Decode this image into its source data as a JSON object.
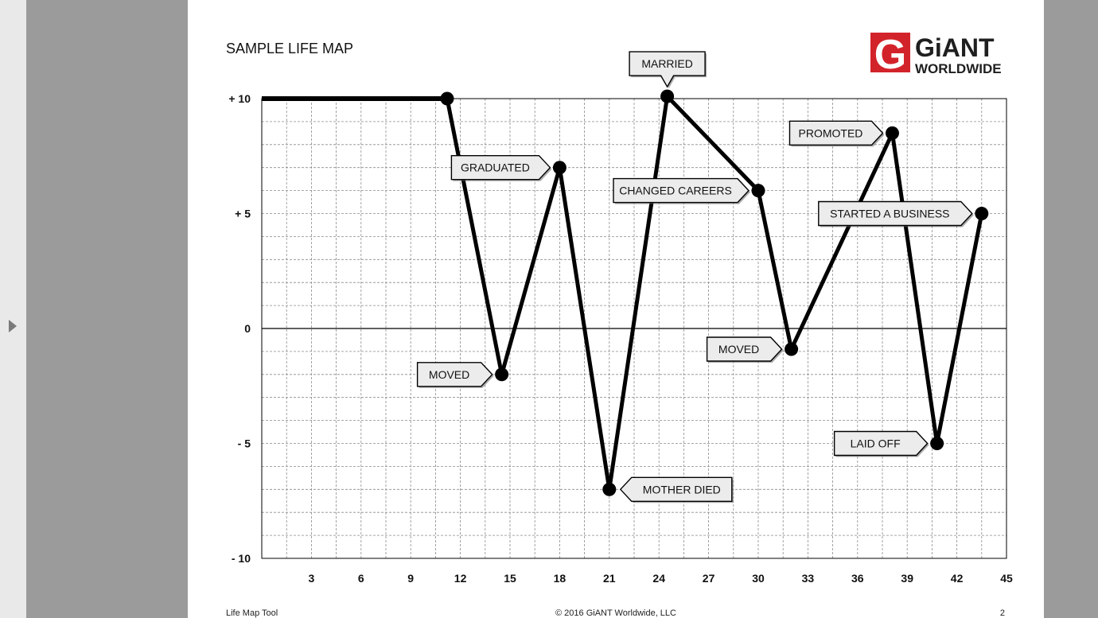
{
  "document": {
    "title": "SAMPLE LIFE MAP",
    "footer_left": "Life Map Tool",
    "footer_center": "© 2016 GiANT Worldwide, LLC",
    "page_number": "2"
  },
  "logo": {
    "mark": "G",
    "line1": "GiANT",
    "line2": "WORLDWIDE",
    "red": "#d3232a",
    "dark": "#1f1f1f"
  },
  "colors": {
    "viewer_background": "#9b9b9b",
    "page": "#ffffff",
    "line": "#000000",
    "grid": "#8c8c8c",
    "callout_fill": "#ececec"
  },
  "chart_data": {
    "type": "line",
    "title": "SAMPLE LIFE MAP",
    "xlabel": "",
    "ylabel": "",
    "xlim": [
      0,
      45
    ],
    "ylim": [
      -10,
      10
    ],
    "x_ticks": [
      3,
      6,
      9,
      12,
      15,
      18,
      21,
      24,
      27,
      30,
      33,
      36,
      39,
      42,
      45
    ],
    "y_ticks": [
      {
        "value": 10,
        "label": "+ 10"
      },
      {
        "value": 5,
        "label": "+ 5"
      },
      {
        "value": 0,
        "label": "0"
      },
      {
        "value": -5,
        "label": "- 5"
      },
      {
        "value": -10,
        "label": "- 10"
      }
    ],
    "grid": true,
    "x_minor_step": 1.5,
    "y_minor_step": 1,
    "baseline": {
      "from_x": 0,
      "to_x": 11.2,
      "y": 10
    },
    "events": [
      {
        "x": 11.2,
        "y": 10,
        "label": "",
        "side": "none"
      },
      {
        "x": 14.5,
        "y": -2,
        "label": "MOVED",
        "side": "left"
      },
      {
        "x": 18,
        "y": 7,
        "label": "GRADUATED",
        "side": "left"
      },
      {
        "x": 21,
        "y": -7,
        "label": "MOTHER DIED",
        "side": "right"
      },
      {
        "x": 24.5,
        "y": 10.1,
        "label": "MARRIED",
        "side": "top"
      },
      {
        "x": 30,
        "y": 6,
        "label": "CHANGED CAREERS",
        "side": "left"
      },
      {
        "x": 32,
        "y": -0.9,
        "label": "MOVED",
        "side": "left"
      },
      {
        "x": 38.1,
        "y": 8.5,
        "label": "PROMOTED",
        "side": "left"
      },
      {
        "x": 40.8,
        "y": -5,
        "label": "LAID OFF",
        "side": "left"
      },
      {
        "x": 43.5,
        "y": 5,
        "label": "STARTED A BUSINESS",
        "side": "left"
      }
    ]
  }
}
